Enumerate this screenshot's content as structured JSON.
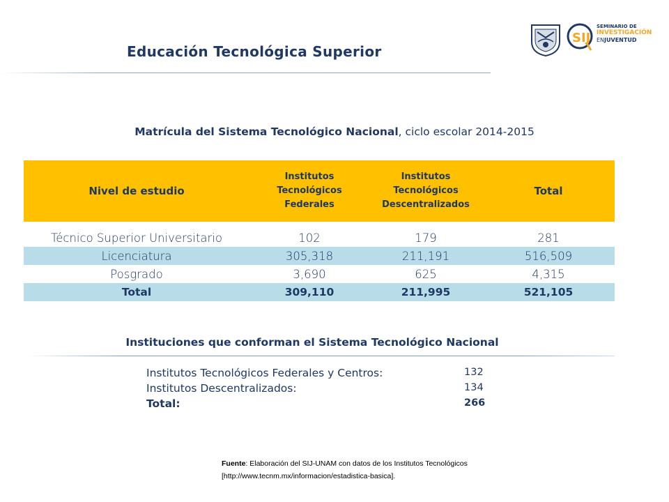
{
  "title": "Educación Tecnológica Superior",
  "brand": {
    "line1": "SEMINARIO DE",
    "line2": "INVESTIGACIÓN",
    "line3_prefix": "EN",
    "line3_bold": "JUVENTUD",
    "sij_mark": "SIJ",
    "primary_color": "#1f3864",
    "accent_color": "#f5a623"
  },
  "subtitle": {
    "bold": "Matrícula del Sistema Tecnológico Nacional",
    "rest": ", ciclo escolar 2014-2015"
  },
  "table": {
    "headers": {
      "nivel": "Nivel de estudio",
      "federales": [
        "Institutos",
        "Tecnológicos",
        "Federales"
      ],
      "descentralizados": [
        "Institutos",
        "Tecnológicos",
        "Descentralizados"
      ],
      "total": "Total"
    },
    "rows": [
      {
        "nivel": "Técnico Superior Universitario",
        "federales": "102",
        "descentralizados": "179",
        "total": "281"
      },
      {
        "nivel": "Licenciatura",
        "federales": "305,318",
        "descentralizados": "211,191",
        "total": "516,509"
      },
      {
        "nivel": "Posgrado",
        "federales": "3,690",
        "descentralizados": "625",
        "total": "4,315"
      }
    ],
    "total_row": {
      "nivel": "Total",
      "federales": "309,110",
      "descentralizados": "211,995",
      "total": "521,105"
    },
    "header_color": "#ffc000",
    "stripe_color": "#b8dde8"
  },
  "instituciones": {
    "title": "Instituciones que conforman el Sistema Tecnológico Nacional",
    "items": [
      {
        "label": "Institutos Tecnológicos Federales y Centros:",
        "value": "132"
      },
      {
        "label": "Institutos Descentralizados:",
        "value": "134"
      }
    ],
    "total": {
      "label": "Total:",
      "value": "266"
    }
  },
  "source": {
    "label": "Fuente",
    "text": ": Elaboración del SIJ-UNAM con datos de los Institutos Tecnológicos",
    "url": "[http://www.tecnm.mx/informacion/estadistica-basica]."
  }
}
